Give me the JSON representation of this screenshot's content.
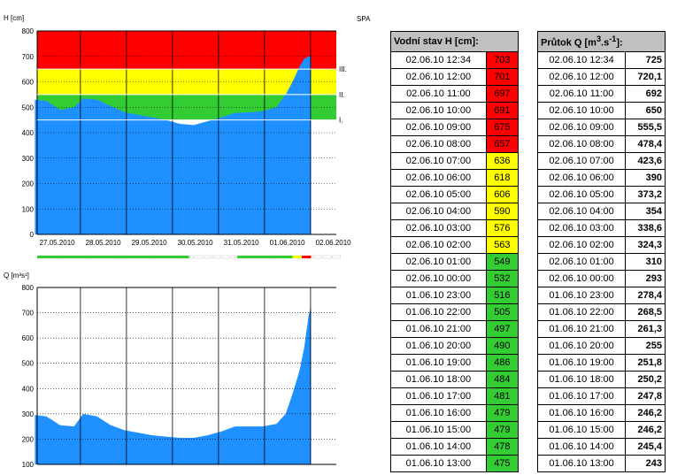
{
  "colors": {
    "red": "#ff0000",
    "yellow": "#ffff00",
    "green": "#33cc33",
    "fill": "#1e90ff"
  },
  "station": "SPA",
  "h_table": {
    "header": "Vodní stav H [cm]:",
    "rows": [
      {
        "time": "02.06.10 12:34",
        "value": "703",
        "level": "red"
      },
      {
        "time": "02.06.10 12:00",
        "value": "701",
        "level": "red"
      },
      {
        "time": "02.06.10 11:00",
        "value": "697",
        "level": "red"
      },
      {
        "time": "02.06.10 10:00",
        "value": "691",
        "level": "red"
      },
      {
        "time": "02.06.10 09:00",
        "value": "675",
        "level": "red"
      },
      {
        "time": "02.06.10 08:00",
        "value": "657",
        "level": "red"
      },
      {
        "time": "02.06.10 07:00",
        "value": "636",
        "level": "yellow"
      },
      {
        "time": "02.06.10 06:00",
        "value": "618",
        "level": "yellow"
      },
      {
        "time": "02.06.10 05:00",
        "value": "606",
        "level": "yellow"
      },
      {
        "time": "02.06.10 04:00",
        "value": "590",
        "level": "yellow"
      },
      {
        "time": "02.06.10 03:00",
        "value": "576",
        "level": "yellow"
      },
      {
        "time": "02.06.10 02:00",
        "value": "563",
        "level": "yellow"
      },
      {
        "time": "02.06.10 01:00",
        "value": "549",
        "level": "green"
      },
      {
        "time": "02.06.10 00:00",
        "value": "532",
        "level": "green"
      },
      {
        "time": "01.06.10 23:00",
        "value": "516",
        "level": "green"
      },
      {
        "time": "01.06.10 22:00",
        "value": "505",
        "level": "green"
      },
      {
        "time": "01.06.10 21:00",
        "value": "497",
        "level": "green"
      },
      {
        "time": "01.06.10 20:00",
        "value": "490",
        "level": "green"
      },
      {
        "time": "01.06.10 19:00",
        "value": "486",
        "level": "green"
      },
      {
        "time": "01.06.10 18:00",
        "value": "484",
        "level": "green"
      },
      {
        "time": "01.06.10 17:00",
        "value": "481",
        "level": "green"
      },
      {
        "time": "01.06.10 16:00",
        "value": "479",
        "level": "green"
      },
      {
        "time": "01.06.10 15:00",
        "value": "479",
        "level": "green"
      },
      {
        "time": "01.06.10 14:00",
        "value": "478",
        "level": "green"
      },
      {
        "time": "01.06.10 13:00",
        "value": "475",
        "level": "green"
      }
    ]
  },
  "q_table": {
    "header_prefix": "Průtok Q [m",
    "header_sup1": "3",
    "header_mid": ".s",
    "header_sup2": "-1",
    "header_suffix": "]:",
    "rows": [
      {
        "time": "02.06.10 12:34",
        "value": "725"
      },
      {
        "time": "02.06.10 12:00",
        "value": "720,1"
      },
      {
        "time": "02.06.10 11:00",
        "value": "692"
      },
      {
        "time": "02.06.10 10:00",
        "value": "650"
      },
      {
        "time": "02.06.10 09:00",
        "value": "555,5"
      },
      {
        "time": "02.06.10 08:00",
        "value": "478,4"
      },
      {
        "time": "02.06.10 07:00",
        "value": "423,6"
      },
      {
        "time": "02.06.10 06:00",
        "value": "390"
      },
      {
        "time": "02.06.10 05:00",
        "value": "373,2"
      },
      {
        "time": "02.06.10 04:00",
        "value": "354"
      },
      {
        "time": "02.06.10 03:00",
        "value": "338,6"
      },
      {
        "time": "02.06.10 02:00",
        "value": "324,3"
      },
      {
        "time": "02.06.10 01:00",
        "value": "310"
      },
      {
        "time": "02.06.10 00:00",
        "value": "293"
      },
      {
        "time": "01.06.10 23:00",
        "value": "278,4"
      },
      {
        "time": "01.06.10 22:00",
        "value": "268,5"
      },
      {
        "time": "01.06.10 21:00",
        "value": "261,3"
      },
      {
        "time": "01.06.10 20:00",
        "value": "255"
      },
      {
        "time": "01.06.10 19:00",
        "value": "251,8"
      },
      {
        "time": "01.06.10 18:00",
        "value": "250,2"
      },
      {
        "time": "01.06.10 17:00",
        "value": "247,8"
      },
      {
        "time": "01.06.10 16:00",
        "value": "246,2"
      },
      {
        "time": "01.06.10 15:00",
        "value": "246,2"
      },
      {
        "time": "01.06.10 14:00",
        "value": "245,4"
      },
      {
        "time": "01.06.10 13:00",
        "value": "243"
      }
    ]
  },
  "chart_data": [
    {
      "type": "area",
      "ylabel": "H [cm]",
      "ylim": [
        0,
        800
      ],
      "yticks": [
        0,
        100,
        200,
        300,
        400,
        500,
        600,
        700,
        800
      ],
      "xlim": [
        0,
        6.5
      ],
      "xtick_positions": [
        0,
        1,
        2,
        3,
        4,
        5,
        6
      ],
      "xtick_labels": [
        "27.05.2010",
        "28.05.2010",
        "29.05.2010",
        "30.05.2010",
        "31.05.2010",
        "01.06.2010",
        "02.06.2010"
      ],
      "bands": [
        {
          "label": "III.",
          "from": 650,
          "to": 800,
          "color": "#ff0000"
        },
        {
          "label": "II.",
          "from": 550,
          "to": 650,
          "color": "#ffff00"
        },
        {
          "label": "I.",
          "from": 450,
          "to": 550,
          "color": "#33cc33"
        }
      ],
      "x": [
        -0.05,
        0.2,
        0.5,
        0.8,
        1.0,
        1.3,
        1.6,
        1.9,
        2.2,
        2.5,
        2.8,
        3.1,
        3.4,
        3.7,
        4.0,
        4.3,
        4.6,
        4.9,
        5.2,
        5.4,
        5.55,
        5.7,
        5.8,
        5.9,
        5.95
      ],
      "y": [
        530,
        525,
        490,
        500,
        535,
        530,
        505,
        480,
        470,
        460,
        450,
        435,
        430,
        445,
        460,
        478,
        480,
        485,
        500,
        550,
        600,
        660,
        690,
        700,
        703
      ],
      "status_strip": [
        {
          "from": 0,
          "to": 3.3,
          "color": "#33cc33"
        },
        {
          "from": 4.35,
          "to": 5.55,
          "color": "#33cc33"
        },
        {
          "from": 5.55,
          "to": 5.75,
          "color": "#ffff00"
        },
        {
          "from": 5.75,
          "to": 5.95,
          "color": "#ff0000"
        }
      ]
    },
    {
      "type": "area",
      "ylabel": "Q [m³s¹]",
      "ylim": [
        100,
        800
      ],
      "yticks": [
        100,
        200,
        300,
        400,
        500,
        600,
        700,
        800
      ],
      "xlim": [
        0,
        6.5
      ],
      "x": [
        -0.05,
        0.2,
        0.5,
        0.8,
        1.0,
        1.3,
        1.6,
        1.9,
        2.2,
        2.5,
        2.8,
        3.1,
        3.4,
        3.7,
        4.0,
        4.3,
        4.6,
        4.9,
        5.2,
        5.4,
        5.55,
        5.7,
        5.8,
        5.9,
        5.95
      ],
      "y": [
        295,
        290,
        255,
        250,
        300,
        290,
        255,
        235,
        225,
        215,
        210,
        205,
        205,
        215,
        230,
        250,
        250,
        250,
        260,
        300,
        380,
        470,
        560,
        690,
        725
      ]
    }
  ]
}
